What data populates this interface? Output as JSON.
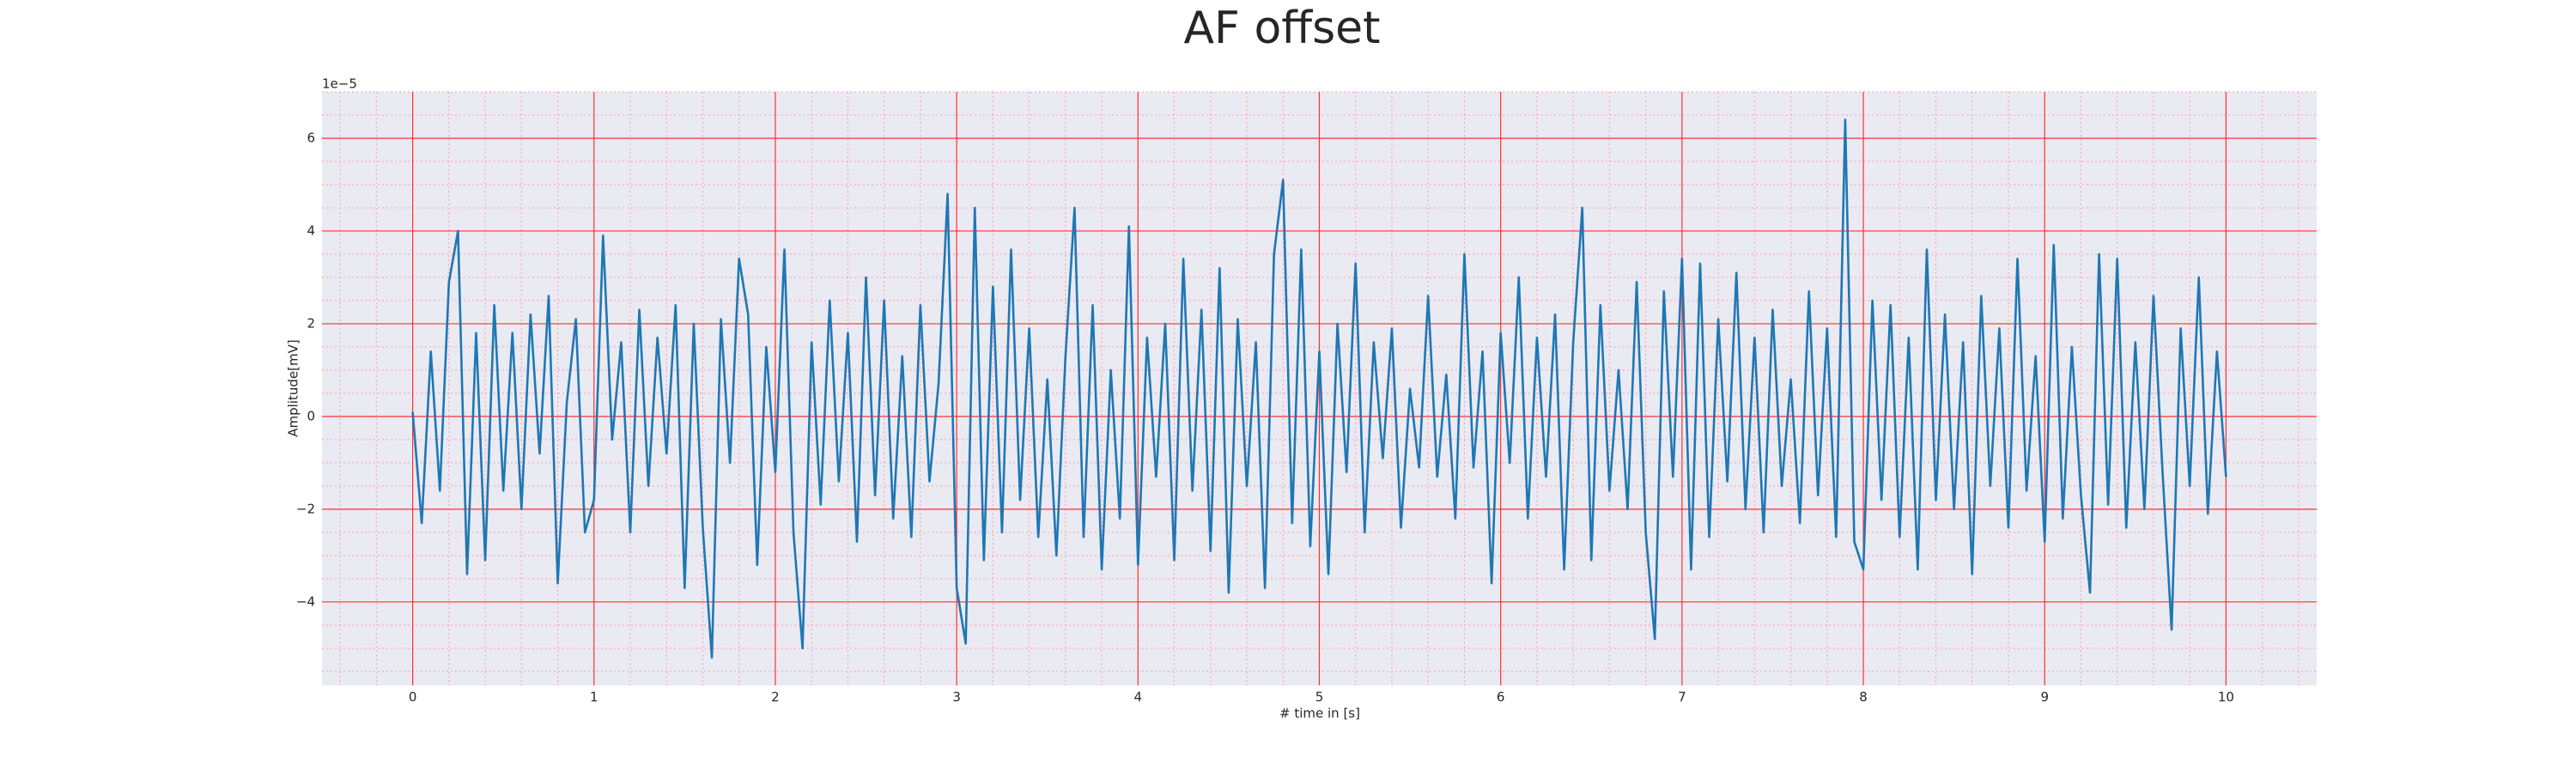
{
  "chart_data": {
    "type": "line",
    "title": "AF offset",
    "xlabel": "# time in [s]",
    "ylabel": "Amplitude[mV]",
    "y_offset_label": "1e−5",
    "color": "#1f77b4",
    "background": "#eaeaf2",
    "grid": true,
    "grid_color": "#ff3030",
    "minor_grid": true,
    "minor_grid_color": "#ff9aa8",
    "xlim": [
      -0.5,
      10.5
    ],
    "ylim": [
      -5.8,
      7
    ],
    "xticks": [
      0,
      1,
      2,
      3,
      4,
      5,
      6,
      7,
      8,
      9,
      10
    ],
    "yticks": [
      {
        "value": -4,
        "label": "−4"
      },
      {
        "value": -2,
        "label": "−2"
      },
      0,
      2,
      4,
      6
    ],
    "x": [
      0,
      0.05,
      0.1,
      0.15,
      0.2,
      0.25,
      0.3,
      0.35,
      0.4,
      0.45,
      0.5,
      0.55,
      0.6,
      0.65,
      0.7,
      0.75,
      0.8,
      0.85,
      0.9,
      0.95,
      1,
      1.05,
      1.1,
      1.15,
      1.2,
      1.25,
      1.3,
      1.35,
      1.4,
      1.45,
      1.5,
      1.55,
      1.6,
      1.65,
      1.7,
      1.75,
      1.8,
      1.85,
      1.9,
      1.95,
      2,
      2.05,
      2.1,
      2.15,
      2.2,
      2.25,
      2.3,
      2.35,
      2.4,
      2.45,
      2.5,
      2.55,
      2.6,
      2.65,
      2.7,
      2.75,
      2.8,
      2.85,
      2.9,
      2.95,
      3,
      3.05,
      3.1,
      3.15,
      3.2,
      3.25,
      3.3,
      3.35,
      3.4,
      3.45,
      3.5,
      3.55,
      3.6,
      3.65,
      3.7,
      3.75,
      3.8,
      3.85,
      3.9,
      3.95,
      4,
      4.05,
      4.1,
      4.15,
      4.2,
      4.25,
      4.3,
      4.35,
      4.4,
      4.45,
      4.5,
      4.55,
      4.6,
      4.65,
      4.7,
      4.75,
      4.8,
      4.85,
      4.9,
      4.95,
      5,
      5.05,
      5.1,
      5.15,
      5.2,
      5.25,
      5.3,
      5.35,
      5.4,
      5.45,
      5.5,
      5.55,
      5.6,
      5.65,
      5.7,
      5.75,
      5.8,
      5.85,
      5.9,
      5.95,
      6,
      6.05,
      6.1,
      6.15,
      6.2,
      6.25,
      6.3,
      6.35,
      6.4,
      6.45,
      6.5,
      6.55,
      6.6,
      6.65,
      6.7,
      6.75,
      6.8,
      6.85,
      6.9,
      6.95,
      7,
      7.05,
      7.1,
      7.15,
      7.2,
      7.25,
      7.3,
      7.35,
      7.4,
      7.45,
      7.5,
      7.55,
      7.6,
      7.65,
      7.7,
      7.75,
      7.8,
      7.85,
      7.9,
      7.95,
      8,
      8.05,
      8.1,
      8.15,
      8.2,
      8.25,
      8.3,
      8.35,
      8.4,
      8.45,
      8.5,
      8.55,
      8.6,
      8.65,
      8.7,
      8.75,
      8.8,
      8.85,
      8.9,
      8.95,
      9,
      9.05,
      9.1,
      9.15,
      9.2,
      9.25,
      9.3,
      9.35,
      9.4,
      9.45,
      9.5,
      9.55,
      9.6,
      9.65,
      9.7,
      9.75,
      9.8,
      9.85,
      9.9,
      9.95,
      10
    ],
    "values": [
      0.1,
      -2.3,
      1.4,
      -1.6,
      2.9,
      4.0,
      -3.4,
      1.8,
      -3.1,
      2.4,
      -1.6,
      1.8,
      -2.0,
      2.2,
      -0.8,
      2.6,
      -3.6,
      0.3,
      2.1,
      -2.5,
      -1.8,
      3.9,
      -0.5,
      1.6,
      -2.5,
      2.3,
      -1.5,
      1.7,
      -0.8,
      2.4,
      -3.7,
      2.0,
      -2.4,
      -5.2,
      2.1,
      -1.0,
      3.4,
      2.2,
      -3.2,
      1.5,
      -1.2,
      3.6,
      -2.5,
      -5.0,
      1.6,
      -1.9,
      2.5,
      -1.4,
      1.8,
      -2.7,
      3.0,
      -1.7,
      2.5,
      -2.2,
      1.3,
      -2.6,
      2.4,
      -1.4,
      0.7,
      4.8,
      -3.7,
      -4.9,
      4.5,
      -3.1,
      2.8,
      -2.5,
      3.6,
      -1.8,
      1.9,
      -2.6,
      0.8,
      -3.0,
      1.3,
      4.5,
      -2.6,
      2.4,
      -3.3,
      1.0,
      -2.2,
      4.1,
      -3.2,
      1.7,
      -1.3,
      2.0,
      -3.1,
      3.4,
      -1.6,
      2.3,
      -2.9,
      3.2,
      -3.8,
      2.1,
      -1.5,
      1.6,
      -3.7,
      3.5,
      5.1,
      -2.3,
      3.6,
      -2.8,
      1.4,
      -3.4,
      2.0,
      -1.2,
      3.3,
      -2.5,
      1.6,
      -0.9,
      1.9,
      -2.4,
      0.6,
      -1.1,
      2.6,
      -1.3,
      0.9,
      -2.2,
      3.5,
      -1.1,
      1.4,
      -3.6,
      1.8,
      -1.0,
      3.0,
      -2.2,
      1.7,
      -1.3,
      2.2,
      -3.3,
      1.6,
      4.5,
      -3.1,
      2.4,
      -1.6,
      1.0,
      -2.0,
      2.9,
      -2.5,
      -4.8,
      2.7,
      -1.3,
      3.4,
      -3.3,
      3.3,
      -2.6,
      2.1,
      -1.4,
      3.1,
      -2.0,
      1.7,
      -2.5,
      2.3,
      -1.5,
      0.8,
      -2.3,
      2.7,
      -1.7,
      1.9,
      -2.6,
      6.4,
      -2.7,
      -3.3,
      2.5,
      -1.8,
      2.4,
      -2.6,
      1.7,
      -3.3,
      3.6,
      -1.8,
      2.2,
      -2.0,
      1.6,
      -3.4,
      2.6,
      -1.5,
      1.9,
      -2.4,
      3.4,
      -1.6,
      1.3,
      -2.7,
      3.7,
      -2.2,
      1.5,
      -1.7,
      -3.8,
      3.5,
      -1.9,
      3.4,
      -2.4,
      1.6,
      -2.0,
      2.6,
      -1.2,
      -4.6,
      1.9,
      -1.5,
      3.0,
      -2.1,
      1.4,
      -1.3
    ]
  }
}
